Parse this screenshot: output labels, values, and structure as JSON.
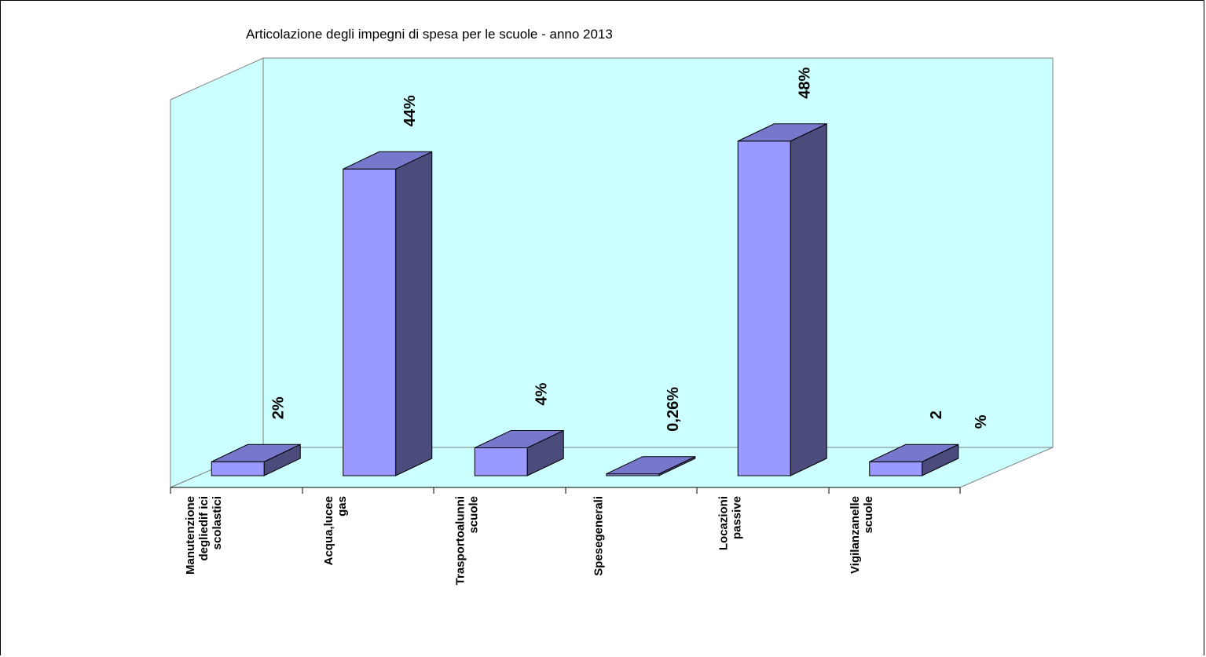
{
  "chart_data": {
    "type": "bar",
    "title": "Articolazione degli impegni di spesa per le scuole - anno 2013",
    "categories": [
      [
        "Manutenzione",
        "degliedif ici",
        "scolastici"
      ],
      [
        "Acqua,lucee",
        "gas"
      ],
      [
        "Trasportoalunni",
        "scuole"
      ],
      [
        "Spesegenerali"
      ],
      [
        "Locazioni",
        "passive"
      ],
      [
        "Vigilanzanelle",
        "scuole"
      ]
    ],
    "values": [
      2,
      44,
      4,
      0.26,
      48,
      2
    ],
    "unit": "%",
    "data_labels": [
      [
        "2%"
      ],
      [
        "44%"
      ],
      [
        "4%"
      ],
      [
        "0,26%"
      ],
      [
        "48%"
      ],
      [
        "2",
        "%"
      ]
    ],
    "ylim": [
      0,
      50
    ],
    "three_d": true,
    "grid": false,
    "legend": "none",
    "colors": {
      "wall": "#ccffff",
      "bar_front": "#9999ff",
      "bar_top": "#7777cc",
      "bar_side": "#4b4b7c"
    }
  }
}
